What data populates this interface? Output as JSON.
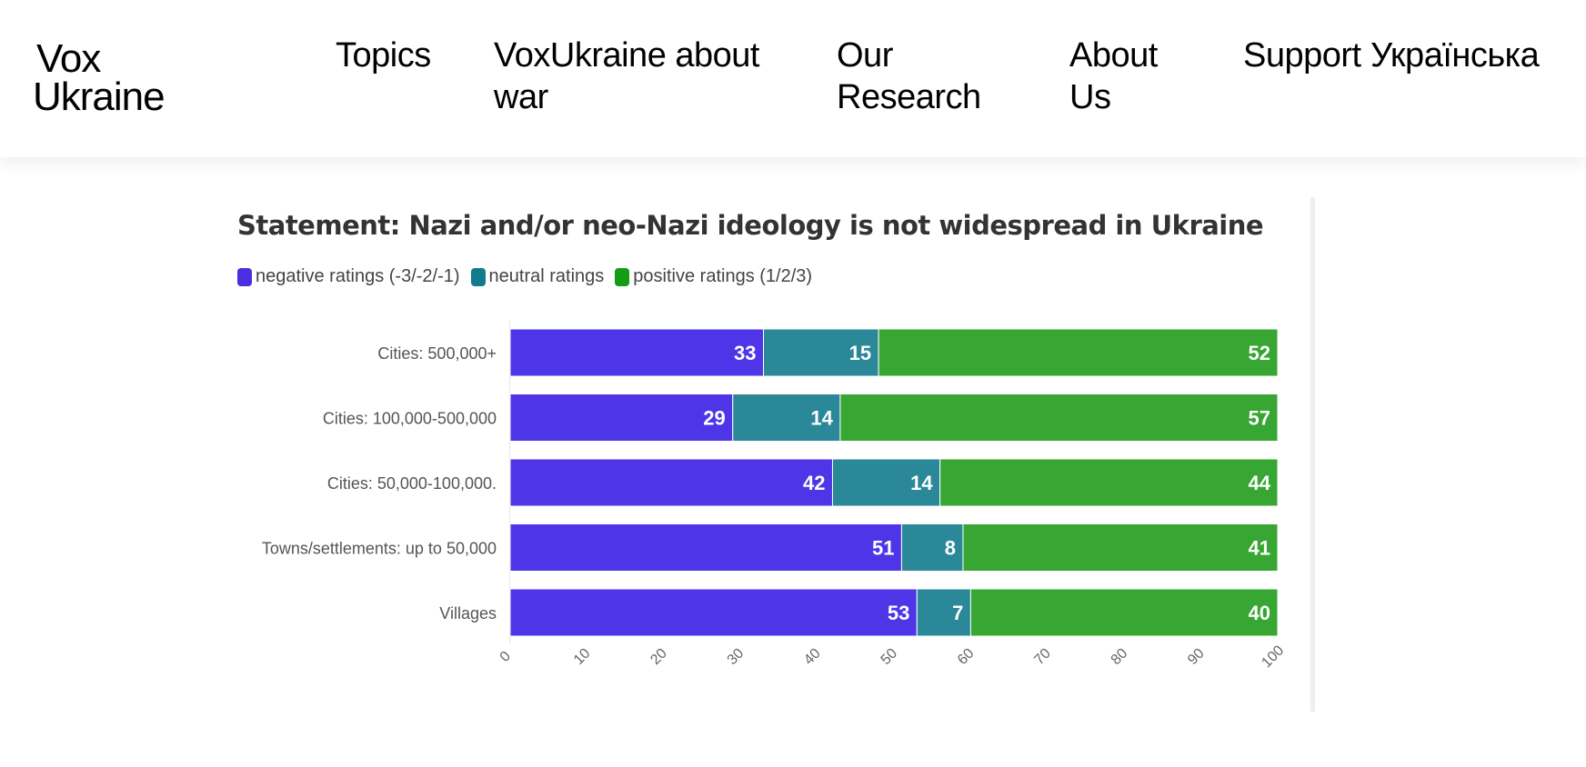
{
  "header": {
    "logo_line1": "Vox",
    "logo_line2": "Ukraine",
    "nav": [
      {
        "line1": "Topics",
        "line2": ""
      },
      {
        "line1": "VoxUkraine about",
        "line2": "war"
      },
      {
        "line1": "Our",
        "line2": "Research"
      },
      {
        "line1": "About",
        "line2": "Us"
      },
      {
        "line1": "Support",
        "line2": ""
      },
      {
        "line1": "Українська",
        "line2": ""
      }
    ]
  },
  "chart_data": {
    "type": "bar",
    "orientation": "horizontal",
    "stacked": true,
    "title": "Statement: Nazi and/or neo-Nazi ideology is not widespread in Ukraine",
    "categories": [
      "Cities: 500,000+",
      "Cities: 100,000-500,000",
      "Cities: 50,000-100,000.",
      "Towns/settlements: up to 50,000",
      "Villages"
    ],
    "series": [
      {
        "name": "negative ratings (-3/-2/-1)",
        "color": "#4f35e8",
        "legend_color": "#4a2fe0",
        "values": [
          33,
          29,
          42,
          51,
          53
        ]
      },
      {
        "name": "neutral ratings",
        "color": "#2a8899",
        "legend_color": "#137a8a",
        "values": [
          15,
          14,
          14,
          8,
          7
        ]
      },
      {
        "name": "positive ratings (1/2/3)",
        "color": "#38a632",
        "legend_color": "#139c14",
        "values": [
          52,
          57,
          44,
          41,
          40
        ]
      }
    ],
    "xlim": [
      0,
      100
    ],
    "xticks": [
      "0",
      "10",
      "20",
      "30",
      "40",
      "50",
      "60",
      "70",
      "80",
      "90",
      "100"
    ],
    "xlabel": "",
    "ylabel": "",
    "grid": false,
    "legend_position": "top-left"
  }
}
